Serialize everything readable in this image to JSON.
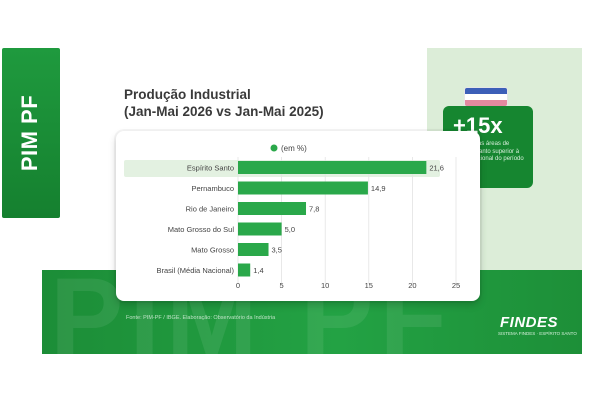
{
  "side_label": "PIM PF",
  "watermark": "PIM PF",
  "title_line1": "Produção Industrial",
  "title_line2": "(Jan-Mai 2026 vs Jan-Mai 2025)",
  "stat": {
    "value": "+15x",
    "description": "Avanço nas áreas de Espírito Santo superior à média nacional do período"
  },
  "source": "Fonte: PIM-PF / IBGE. Elaboração: Observatório da Indústria",
  "logo": {
    "name": "FINDES",
    "tagline": "SISTEMA FINDES · ESPÍRITO SANTO"
  },
  "colors": {
    "bar": "#2aa84a",
    "highlight_bg": "#e3f1e1",
    "band": "#1f9a3e",
    "legend_dot": "#2aa84a"
  },
  "chart_data": {
    "type": "bar",
    "orientation": "horizontal",
    "legend": "(em %)",
    "categories": [
      "Espírito Santo",
      "Pernambuco",
      "Rio de Janeiro",
      "Mato Grosso do Sul",
      "Mato Grosso",
      "Brasil (Média Nacional)"
    ],
    "values": [
      21.6,
      14.9,
      7.8,
      5.0,
      3.5,
      1.4
    ],
    "value_labels": [
      "21,6",
      "14,9",
      "7,8",
      "5,0",
      "3,5",
      "1,4"
    ],
    "highlight": "Espírito Santo",
    "xlim": [
      0,
      25
    ],
    "xticks": [
      0,
      5,
      10,
      15,
      20,
      25
    ],
    "grid": true
  }
}
